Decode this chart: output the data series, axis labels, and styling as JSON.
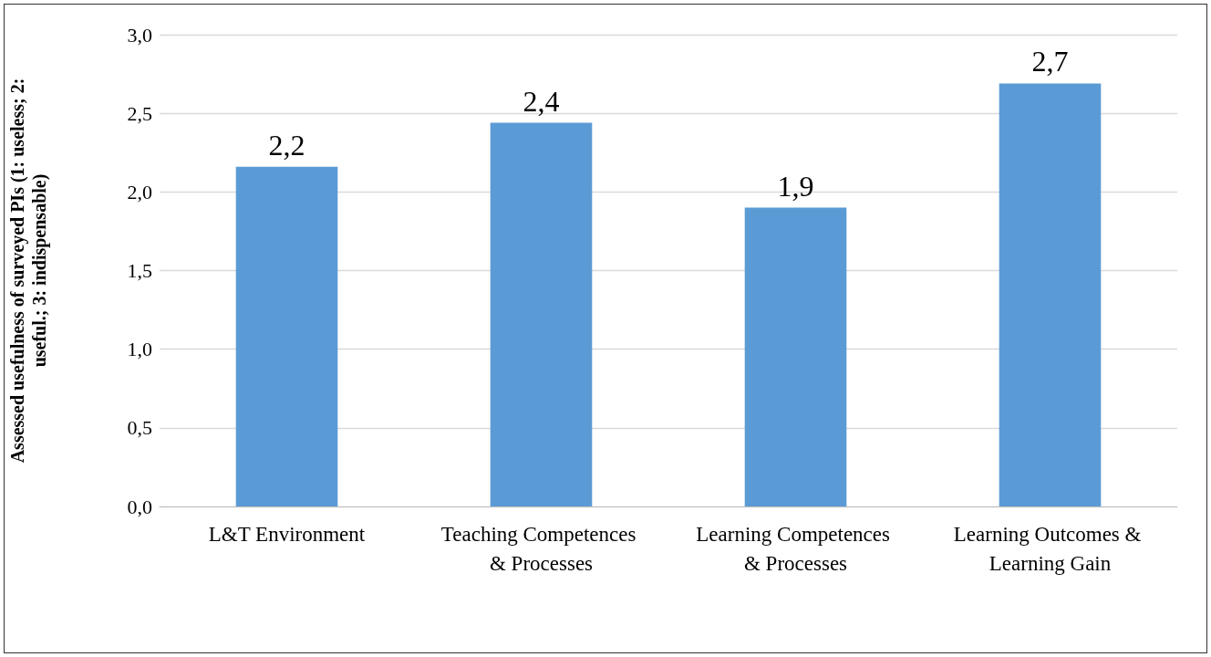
{
  "chart_data": {
    "type": "bar",
    "ylabel": "Assessed usefulness of surveyed PIs (1: useless; 2: useful.; 3: indispensable)",
    "categories": [
      "L&T Environment",
      "Teaching Competences & Processes",
      "Learning Competences & Processes",
      "Learning Outcomes & Learning Gain"
    ],
    "values": [
      2.16,
      2.44,
      1.9,
      2.69
    ],
    "value_labels": [
      "2,2",
      "2,4",
      "1,9",
      "2,7"
    ],
    "color": "#5b9bd5",
    "ylim": [
      0,
      3
    ],
    "yticks": [
      {
        "value": 0,
        "label": "0,0"
      },
      {
        "value": 0.5,
        "label": "0,5"
      },
      {
        "value": 1,
        "label": "1,0"
      },
      {
        "value": 1.5,
        "label": "1,5"
      },
      {
        "value": 2,
        "label": "2,0"
      },
      {
        "value": 2.5,
        "label": "2,5"
      },
      {
        "value": 3,
        "label": "3,0"
      }
    ],
    "grid": "y"
  }
}
